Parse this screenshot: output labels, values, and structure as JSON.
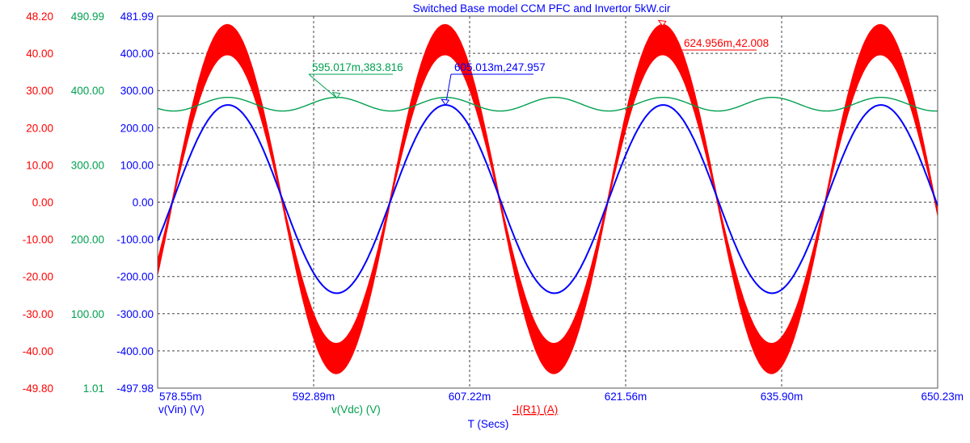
{
  "chart_data": {
    "type": "line",
    "title": "Switched Base model CCM PFC and Invertor 5kW.cir",
    "xlabel": "T (Secs)",
    "x_range_ms": [
      578.55,
      650.23
    ],
    "x_ticks": [
      "578.55m",
      "592.89m",
      "607.22m",
      "621.56m",
      "635.90m",
      "650.23m"
    ],
    "y_axes": [
      {
        "name": "current",
        "color": "#ff0000",
        "range": [
          -49.8,
          48.2
        ],
        "ticks": [
          "48.20",
          "40.00",
          "30.00",
          "20.00",
          "10.00",
          "0.00",
          "-10.00",
          "-20.00",
          "-30.00",
          "-40.00",
          "-49.80"
        ]
      },
      {
        "name": "vdc",
        "color": "#00a050",
        "range": [
          1.01,
          490.99
        ],
        "ticks": [
          "490.99",
          "400.00",
          "300.00",
          "200.00",
          "100.00",
          "1.01"
        ]
      },
      {
        "name": "vin",
        "color": "#0000ff",
        "range": [
          -497.98,
          481.99
        ],
        "ticks": [
          "481.99",
          "400.00",
          "300.00",
          "200.00",
          "100.00",
          "0.00",
          "-100.00",
          "-200.00",
          "-300.00",
          "-400.00",
          "-497.98"
        ]
      }
    ],
    "series": [
      {
        "name": "v(Vin) (V)",
        "color": "#0000ff",
        "axis": "vin",
        "shape": "sine",
        "amplitude": 247.96,
        "frequency_hz": 50,
        "peak_time_ms": 605.013
      },
      {
        "name": "v(Vdc) (V)",
        "color": "#00a050",
        "axis": "vdc",
        "shape": "ripple",
        "mean": 375,
        "ripple_amplitude": 9,
        "ripple_frequency_hz": 100,
        "peak_time_ms": 595.017
      },
      {
        "name": "-I(R1) (A)",
        "color": "#ff0000",
        "axis": "current",
        "shape": "sine_band",
        "amplitude": 42,
        "band_peak": 4.0,
        "band_zero": 0.5,
        "frequency_hz": 50,
        "peak_time_ms": 624.956
      }
    ],
    "annotations": [
      {
        "text": "595.017m,383.816",
        "x_ms": 595.017,
        "series": "v(Vdc) (V)",
        "color": "#00a050"
      },
      {
        "text": "605.013m,247.957",
        "x_ms": 605.013,
        "series": "v(Vin) (V)",
        "color": "#0000ff"
      },
      {
        "text": "624.956m,42.008",
        "x_ms": 624.956,
        "series": "-I(R1) (A)",
        "color": "#ff0000"
      }
    ]
  }
}
